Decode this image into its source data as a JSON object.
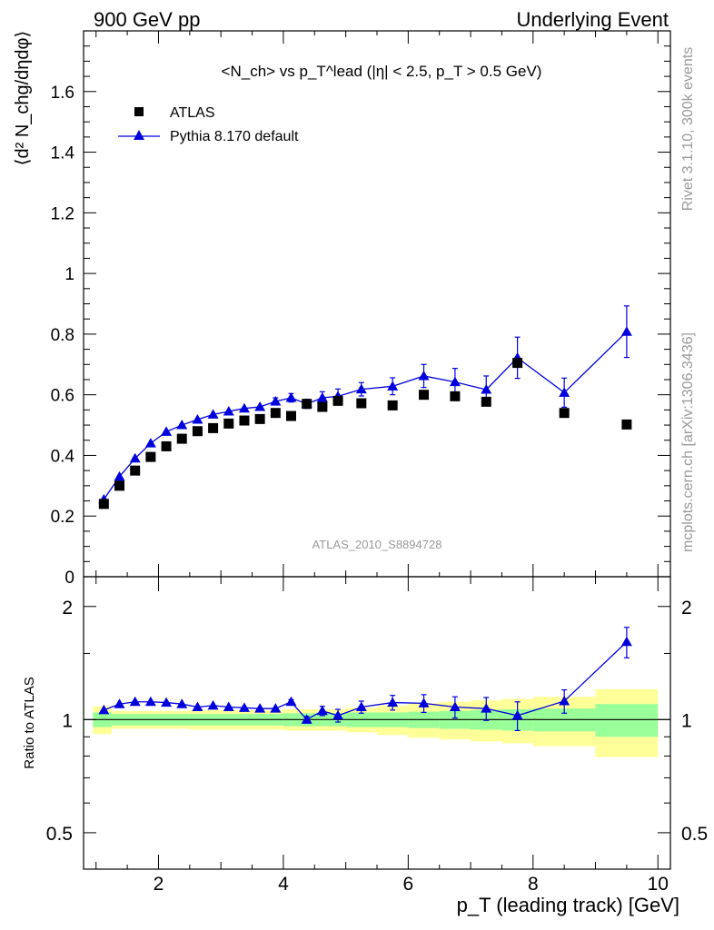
{
  "header": {
    "left": "900 GeV pp",
    "right": "Underlying Event"
  },
  "side": {
    "rivet": "Rivet 3.1.10,  300k events",
    "mcplots": "mcplots.cern.ch [arXiv:1306.3436]"
  },
  "colors": {
    "atlas": "#000000",
    "pythia": "#0000dd",
    "band_inner": "#99ff99",
    "band_outer": "#ffff99"
  },
  "chart_data": [
    {
      "type": "scatter",
      "title": "<N_ch> vs p_T^lead (|η| < 2.5, p_T > 0.5 GeV)",
      "ylabel": "⟨d² N_chg/dηdφ⟩",
      "xlabel": "",
      "xlim": [
        0.8,
        10.2
      ],
      "ylim": [
        0,
        1.8
      ],
      "yticks": [
        0,
        0.2,
        0.4,
        0.6,
        0.8,
        1,
        1.2,
        1.4,
        1.6
      ],
      "yticklabels": [
        "0",
        "0.2",
        "0.4",
        "0.6",
        "0.8",
        "1",
        "1.2",
        "1.4",
        "1.6"
      ],
      "watermark": "ATLAS_2010_S8894728",
      "legend": [
        "ATLAS",
        "Pythia 8.170 default"
      ],
      "legend_position": "top-left",
      "x": [
        1.125,
        1.375,
        1.625,
        1.875,
        2.125,
        2.375,
        2.625,
        2.875,
        3.125,
        3.375,
        3.625,
        3.875,
        4.125,
        4.375,
        4.625,
        4.875,
        5.25,
        5.75,
        6.25,
        6.75,
        7.25,
        7.75,
        8.5,
        9.5
      ],
      "series": [
        {
          "name": "ATLAS",
          "marker": "square",
          "values": [
            0.24,
            0.3,
            0.35,
            0.395,
            0.43,
            0.455,
            0.48,
            0.49,
            0.505,
            0.515,
            0.52,
            0.54,
            0.53,
            0.57,
            0.56,
            0.58,
            0.572,
            0.565,
            0.6,
            0.595,
            0.577,
            0.705,
            0.54,
            0.502
          ]
        },
        {
          "name": "Pythia 8.170 default",
          "marker": "triangle",
          "values": [
            0.255,
            0.33,
            0.39,
            0.44,
            0.478,
            0.5,
            0.518,
            0.535,
            0.545,
            0.555,
            0.56,
            0.578,
            0.59,
            0.57,
            0.59,
            0.595,
            0.618,
            0.628,
            0.662,
            0.642,
            0.617,
            0.722,
            0.607,
            0.808
          ],
          "errors": [
            0.01,
            0.01,
            0.01,
            0.01,
            0.01,
            0.01,
            0.01,
            0.01,
            0.01,
            0.01,
            0.01,
            0.012,
            0.014,
            0.015,
            0.02,
            0.024,
            0.022,
            0.028,
            0.038,
            0.045,
            0.045,
            0.068,
            0.048,
            0.085
          ]
        }
      ]
    },
    {
      "type": "line",
      "ylabel": "Ratio to ATLAS",
      "xlabel": "p_T (leading track) [GeV]",
      "xlim": [
        0.8,
        10.2
      ],
      "ylim": [
        0.4,
        2.4
      ],
      "yscale": "log",
      "xticks": [
        2,
        4,
        6,
        8,
        10
      ],
      "xticklabels": [
        "2",
        "4",
        "6",
        "8",
        "10"
      ],
      "yticks": [
        0.5,
        1,
        2
      ],
      "yticklabels": [
        "0.5",
        "1",
        "2"
      ],
      "x": [
        1.125,
        1.375,
        1.625,
        1.875,
        2.125,
        2.375,
        2.625,
        2.875,
        3.125,
        3.375,
        3.625,
        3.875,
        4.125,
        4.375,
        4.625,
        4.875,
        5.25,
        5.75,
        6.25,
        6.75,
        7.25,
        7.75,
        8.5,
        9.5
      ],
      "series": [
        {
          "name": "Pythia 8.170 default",
          "values": [
            1.06,
            1.1,
            1.115,
            1.115,
            1.11,
            1.1,
            1.08,
            1.09,
            1.08,
            1.075,
            1.07,
            1.07,
            1.115,
            1.0,
            1.055,
            1.025,
            1.08,
            1.11,
            1.105,
            1.08,
            1.07,
            1.025,
            1.12,
            1.61
          ],
          "errors": [
            0.01,
            0.01,
            0.01,
            0.01,
            0.01,
            0.01,
            0.01,
            0.01,
            0.01,
            0.01,
            0.01,
            0.01,
            0.015,
            0.02,
            0.03,
            0.04,
            0.04,
            0.05,
            0.06,
            0.07,
            0.075,
            0.09,
            0.08,
            0.15
          ]
        }
      ],
      "bands": [
        {
          "x0": 0.95,
          "x1": 1.25,
          "inner": [
            0.955,
            1.045
          ],
          "outer": [
            0.915,
            1.085
          ]
        },
        {
          "x0": 1.25,
          "x1": 2.5,
          "inner": [
            0.965,
            1.035
          ],
          "outer": [
            0.945,
            1.055
          ]
        },
        {
          "x0": 2.5,
          "x1": 4.0,
          "inner": [
            0.965,
            1.035
          ],
          "outer": [
            0.94,
            1.06
          ]
        },
        {
          "x0": 4.0,
          "x1": 5.0,
          "inner": [
            0.96,
            1.04
          ],
          "outer": [
            0.935,
            1.065
          ]
        },
        {
          "x0": 5.0,
          "x1": 5.5,
          "inner": [
            0.955,
            1.045
          ],
          "outer": [
            0.925,
            1.075
          ]
        },
        {
          "x0": 5.5,
          "x1": 6.0,
          "inner": [
            0.955,
            1.045
          ],
          "outer": [
            0.91,
            1.09
          ]
        },
        {
          "x0": 6.0,
          "x1": 6.5,
          "inner": [
            0.95,
            1.05
          ],
          "outer": [
            0.895,
            1.105
          ]
        },
        {
          "x0": 6.5,
          "x1": 7.0,
          "inner": [
            0.945,
            1.055
          ],
          "outer": [
            0.885,
            1.115
          ]
        },
        {
          "x0": 7.0,
          "x1": 7.5,
          "inner": [
            0.94,
            1.06
          ],
          "outer": [
            0.875,
            1.125
          ]
        },
        {
          "x0": 7.5,
          "x1": 8.0,
          "inner": [
            0.935,
            1.065
          ],
          "outer": [
            0.865,
            1.135
          ]
        },
        {
          "x0": 8.0,
          "x1": 9.0,
          "inner": [
            0.93,
            1.07
          ],
          "outer": [
            0.85,
            1.15
          ]
        },
        {
          "x0": 9.0,
          "x1": 10.0,
          "inner": [
            0.9,
            1.1
          ],
          "outer": [
            0.795,
            1.205
          ]
        }
      ]
    }
  ]
}
